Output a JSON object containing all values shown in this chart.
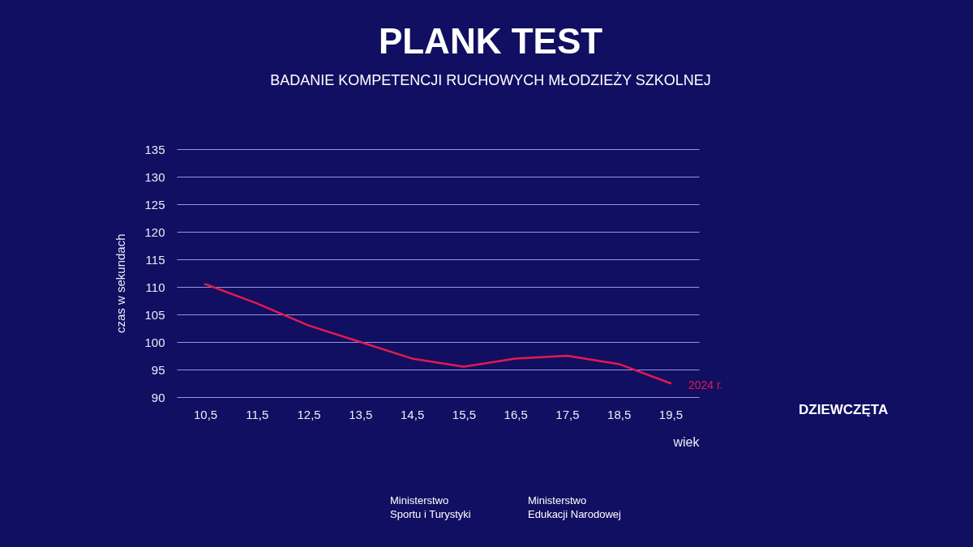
{
  "chart_data": {
    "type": "line",
    "title": "PLANK TEST",
    "subtitle": "BADANIE KOMPETENCJI RUCHOWYCH MŁODZIEŻY SZKOLNEJ",
    "xlabel": "wiek",
    "ylabel": "czas w sekundach",
    "categories": [
      "10,5",
      "11,5",
      "12,5",
      "13,5",
      "14,5",
      "15,5",
      "16,5",
      "17,5",
      "18,5",
      "19,5"
    ],
    "series": [
      {
        "name": "2024 r.",
        "color": "#e5194f",
        "values": [
          110.5,
          107,
          103,
          100,
          97,
          95.5,
          97,
          97.5,
          96,
          92.5
        ]
      }
    ],
    "ylim": [
      90,
      135
    ],
    "yticks": [
      90,
      95,
      100,
      105,
      110,
      115,
      120,
      125,
      130,
      135
    ],
    "grid": "y",
    "legend": false,
    "marker": "none",
    "line_style": "solid",
    "annotations": [
      "DZIEWCZĘTA",
      "Ministerstwo\nSportu i Turystyki",
      "Ministerstwo\nEdukacji Narodowej"
    ]
  }
}
